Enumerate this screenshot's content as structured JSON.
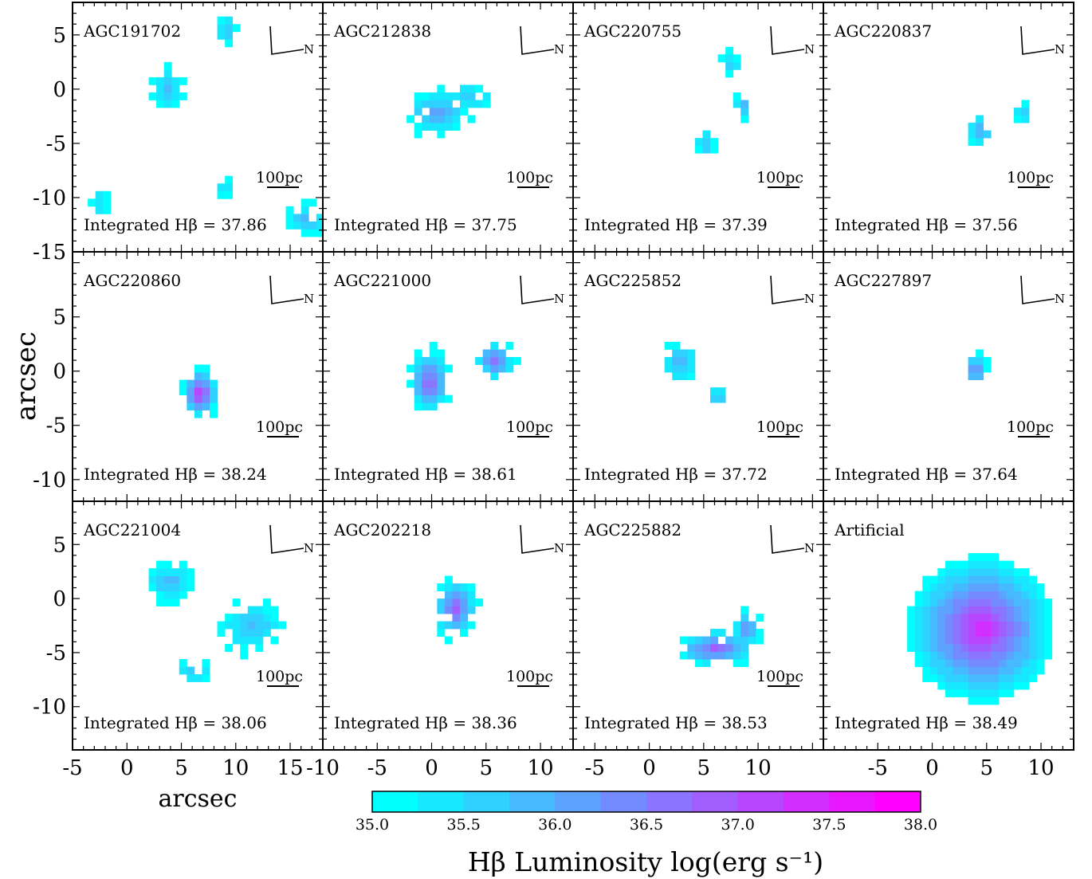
{
  "figure": {
    "ylabel": "arcsec",
    "xlabel": "arcsec",
    "scale_bar_label": "100pc",
    "compass_label": "N",
    "integrated_prefix": "Integrated Hβ = ",
    "colorbar": {
      "label": "Hβ Luminosity log(erg s⁻¹)",
      "min": 35.0,
      "max": 38.0,
      "ticks": [
        "35.0",
        "35.5",
        "36.0",
        "36.5",
        "37.0",
        "37.5",
        "38.0"
      ],
      "colors": [
        "#00ffff",
        "#ff00ff"
      ],
      "levels": 12
    }
  },
  "panels": [
    {
      "id": "AGC191702",
      "name": "AGC191702",
      "integrated": "37.86"
    },
    {
      "id": "AGC212838",
      "name": "AGC212838",
      "integrated": "37.75"
    },
    {
      "id": "AGC220755",
      "name": "AGC220755",
      "integrated": "37.39"
    },
    {
      "id": "AGC220837",
      "name": "AGC220837",
      "integrated": "37.56"
    },
    {
      "id": "AGC220860",
      "name": "AGC220860",
      "integrated": "38.24"
    },
    {
      "id": "AGC221000",
      "name": "AGC221000",
      "integrated": "38.61"
    },
    {
      "id": "AGC225852",
      "name": "AGC225852",
      "integrated": "37.72"
    },
    {
      "id": "AGC227897",
      "name": "AGC227897",
      "integrated": "37.64"
    },
    {
      "id": "AGC221004",
      "name": "AGC221004",
      "integrated": "38.06"
    },
    {
      "id": "AGC202218",
      "name": "AGC202218",
      "integrated": "38.36"
    },
    {
      "id": "AGC225882",
      "name": "AGC225882",
      "integrated": "38.53"
    },
    {
      "id": "Artificial",
      "name": "Artificial",
      "integrated": "38.49"
    }
  ],
  "chart_data": {
    "type": "heatmap",
    "rows": [
      {
        "ylim": [
          -15,
          8
        ],
        "yticks": [
          5,
          0,
          -5,
          -10,
          -15
        ],
        "ytick_labels": [
          "5",
          "0",
          "-5",
          "-10",
          "-15"
        ]
      },
      {
        "ylim": [
          -12,
          11
        ],
        "yticks": [
          5,
          0,
          -5,
          -10
        ],
        "ytick_labels": [
          "5",
          "0",
          "-5",
          "-10"
        ]
      },
      {
        "ylim": [
          -14,
          9
        ],
        "yticks": [
          5,
          0,
          -5,
          -10
        ],
        "ytick_labels": [
          "5",
          "0",
          "-5",
          "-10"
        ]
      }
    ],
    "columns": [
      {
        "xlim": [
          -5,
          18
        ],
        "xticks": [
          -5,
          0,
          5,
          10,
          15
        ],
        "xtick_labels": [
          "-5",
          "0",
          "5",
          "10",
          "15"
        ]
      },
      {
        "xlim": [
          -10,
          13
        ],
        "xticks": [
          -10,
          -5,
          0,
          5,
          10
        ],
        "xtick_labels": [
          "-10",
          "-5",
          "0",
          "5",
          "10"
        ]
      },
      {
        "xlim": [
          -7,
          16
        ],
        "xticks": [
          -5,
          0,
          5,
          10
        ],
        "xtick_labels": [
          "-5",
          "0",
          "5",
          "10"
        ]
      },
      {
        "xlim": [
          -10,
          13
        ],
        "xticks": [
          -5,
          0,
          5,
          10
        ],
        "xtick_labels": [
          "-5",
          "0",
          "5",
          "10"
        ]
      }
    ],
    "blobs": {
      "AGC191702": [
        {
          "x": 3.7,
          "y": 0.0,
          "rx": 1.3,
          "ry": 2.0,
          "peak": 35.9
        },
        {
          "x": 9.2,
          "y": 5.5,
          "rx": 0.8,
          "ry": 1.6,
          "peak": 35.8
        },
        {
          "x": 16.5,
          "y": -12.0,
          "rx": 1.7,
          "ry": 1.4,
          "peak": 36.1
        },
        {
          "x": -2.5,
          "y": -10.5,
          "rx": 0.9,
          "ry": 1.4,
          "peak": 35.5
        },
        {
          "x": 9.0,
          "y": -9.0,
          "rx": 0.7,
          "ry": 1.0,
          "peak": 35.8
        }
      ],
      "AGC212838": [
        {
          "x": 0.5,
          "y": -2.2,
          "rx": 2.8,
          "ry": 1.9,
          "peak": 36.2
        },
        {
          "x": 3.3,
          "y": -0.7,
          "rx": 2.5,
          "ry": 1.2,
          "peak": 35.7
        }
      ],
      "AGC220755": [
        {
          "x": 8.6,
          "y": -1.6,
          "rx": 1.0,
          "ry": 1.3,
          "peak": 36.0
        },
        {
          "x": 7.5,
          "y": 2.3,
          "rx": 0.8,
          "ry": 1.1,
          "peak": 35.8
        },
        {
          "x": 5.2,
          "y": -5.0,
          "rx": 0.9,
          "ry": 1.4,
          "peak": 35.8
        }
      ],
      "AGC220837": [
        {
          "x": 4.5,
          "y": -3.8,
          "rx": 1.1,
          "ry": 1.3,
          "peak": 36.1
        },
        {
          "x": 8.3,
          "y": -2.1,
          "rx": 0.8,
          "ry": 0.9,
          "peak": 36.0
        }
      ],
      "AGC220860": [
        {
          "x": 6.7,
          "y": -2.0,
          "rx": 1.6,
          "ry": 2.2,
          "peak": 37.4
        }
      ],
      "AGC221000": [
        {
          "x": -0.2,
          "y": -1.0,
          "rx": 1.8,
          "ry": 2.8,
          "peak": 37.0
        },
        {
          "x": 5.8,
          "y": 1.0,
          "rx": 1.7,
          "ry": 1.7,
          "peak": 36.8
        }
      ],
      "AGC225852": [
        {
          "x": 2.8,
          "y": 0.8,
          "rx": 1.6,
          "ry": 1.6,
          "peak": 36.1
        },
        {
          "x": 6.3,
          "y": -2.3,
          "rx": 0.8,
          "ry": 0.8,
          "peak": 36.2
        }
      ],
      "AGC227897": [
        {
          "x": 4.0,
          "y": 0.2,
          "rx": 1.1,
          "ry": 1.4,
          "peak": 36.6
        }
      ],
      "AGC221004": [
        {
          "x": 4.0,
          "y": 1.5,
          "rx": 2.1,
          "ry": 1.6,
          "peak": 36.0
        },
        {
          "x": 11.5,
          "y": -2.6,
          "rx": 2.8,
          "ry": 2.2,
          "peak": 35.9
        },
        {
          "x": 6.3,
          "y": -6.7,
          "rx": 1.6,
          "ry": 1.0,
          "peak": 35.9
        }
      ],
      "AGC202218": [
        {
          "x": 2.2,
          "y": -0.9,
          "rx": 1.9,
          "ry": 2.7,
          "peak": 36.9
        }
      ],
      "AGC225882": [
        {
          "x": 6.2,
          "y": -4.6,
          "rx": 3.7,
          "ry": 1.6,
          "peak": 36.9
        },
        {
          "x": 9.0,
          "y": -2.8,
          "rx": 1.2,
          "ry": 1.8,
          "peak": 36.4
        }
      ],
      "Artificial": [
        {
          "x": 4.5,
          "y": -2.8,
          "rx": 6.8,
          "ry": 6.8,
          "peak": 37.5,
          "edge": 35.0
        }
      ]
    }
  }
}
